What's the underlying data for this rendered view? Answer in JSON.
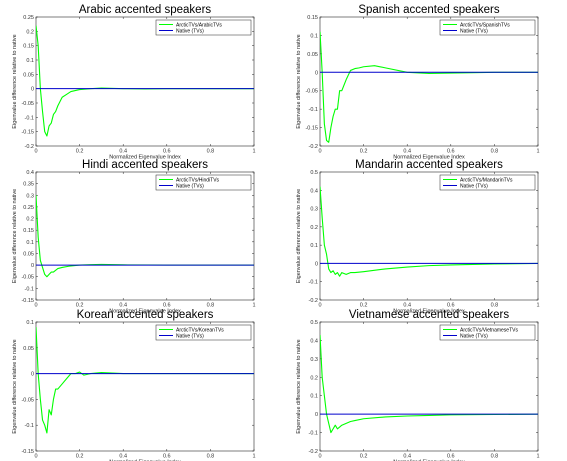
{
  "chart_data": [
    {
      "type": "line",
      "title": "Arabic accented speakers",
      "xlabel": "Normalized Eigenvalue Index",
      "ylabel": "Eigenvalue difference relative to native",
      "xlim": [
        0,
        1
      ],
      "ylim": [
        -0.2,
        0.25
      ],
      "xticks": [
        "0",
        "0.2",
        "0.4",
        "0.6",
        "0.8",
        "1"
      ],
      "yticks": [
        "-0.2",
        "-0.15",
        "-0.1",
        "-0.05",
        "0",
        "0.05",
        "0.1",
        "0.15",
        "0.2",
        "0.25"
      ],
      "legend_position": "top-right",
      "grid": false,
      "series": [
        {
          "name": "ArcticTVs/ArabicTVs",
          "color": "#00ff00",
          "x": [
            0,
            0.01,
            0.02,
            0.03,
            0.04,
            0.05,
            0.06,
            0.07,
            0.08,
            0.09,
            0.1,
            0.12,
            0.14,
            0.16,
            0.2,
            0.25,
            0.3,
            0.4,
            0.5,
            0.6,
            0.8,
            1.0
          ],
          "y": [
            0.22,
            0.15,
            0.0,
            -0.08,
            -0.15,
            -0.165,
            -0.13,
            -0.12,
            -0.09,
            -0.08,
            -0.06,
            -0.03,
            -0.02,
            -0.01,
            -0.003,
            0.0,
            0.002,
            0.0,
            -0.001,
            0.0,
            0.0,
            0.0
          ]
        },
        {
          "name": "Native (TVs)",
          "color": "#0000cc",
          "x": [
            0,
            1
          ],
          "y": [
            0,
            0
          ]
        }
      ]
    },
    {
      "type": "line",
      "title": "Spanish accented speakers",
      "xlabel": "Normalized Eigenvalue Index",
      "ylabel": "Eigenvalue difference relative to native",
      "xlim": [
        0,
        1
      ],
      "ylim": [
        -0.2,
        0.15
      ],
      "xticks": [
        "0",
        "0.2",
        "0.4",
        "0.6",
        "0.8",
        "1"
      ],
      "yticks": [
        "-0.2",
        "-0.15",
        "-0.1",
        "-0.05",
        "0",
        "0.05",
        "0.1",
        "0.15"
      ],
      "legend_position": "top-right",
      "grid": false,
      "series": [
        {
          "name": "ArcticTVs/SpanishTVs",
          "color": "#00ff00",
          "x": [
            0,
            0.01,
            0.02,
            0.03,
            0.04,
            0.05,
            0.06,
            0.07,
            0.08,
            0.09,
            0.1,
            0.12,
            0.14,
            0.16,
            0.18,
            0.2,
            0.25,
            0.3,
            0.4,
            0.5,
            0.6,
            0.8,
            1.0
          ],
          "y": [
            0.11,
            0.0,
            -0.14,
            -0.185,
            -0.19,
            -0.15,
            -0.12,
            -0.1,
            -0.1,
            -0.05,
            -0.05,
            -0.02,
            0.005,
            0.01,
            0.012,
            0.015,
            0.018,
            0.012,
            0.0,
            -0.003,
            -0.002,
            0.0,
            0.0
          ]
        },
        {
          "name": "Native (TVs)",
          "color": "#0000cc",
          "x": [
            0,
            1
          ],
          "y": [
            0,
            0
          ]
        }
      ]
    },
    {
      "type": "line",
      "title": "Hindi accented speakers",
      "xlabel": "Normalized Eigenvalue Index",
      "ylabel": "Eigenvalue difference relative to native",
      "xlim": [
        0,
        1
      ],
      "ylim": [
        -0.15,
        0.4
      ],
      "xticks": [
        "0",
        "0.2",
        "0.4",
        "0.6",
        "0.8",
        "1"
      ],
      "yticks": [
        "-0.15",
        "-0.1",
        "-0.05",
        "0",
        "0.05",
        "0.1",
        "0.15",
        "0.2",
        "0.25",
        "0.3",
        "0.35",
        "0.4"
      ],
      "legend_position": "top-right",
      "grid": false,
      "series": [
        {
          "name": "ArcticTVs/HindiTVs",
          "color": "#00ff00",
          "x": [
            0,
            0.01,
            0.02,
            0.03,
            0.04,
            0.05,
            0.06,
            0.07,
            0.08,
            0.1,
            0.12,
            0.15,
            0.2,
            0.25,
            0.3,
            0.4,
            0.6,
            0.8,
            1.0
          ],
          "y": [
            0.3,
            0.12,
            0.02,
            -0.01,
            -0.04,
            -0.05,
            -0.04,
            -0.03,
            -0.03,
            -0.015,
            -0.01,
            -0.005,
            0.0,
            0.002,
            0.003,
            0.001,
            0.0,
            0.0,
            0.0
          ]
        },
        {
          "name": "Native (TVs)",
          "color": "#0000cc",
          "x": [
            0,
            1
          ],
          "y": [
            0,
            0
          ]
        }
      ]
    },
    {
      "type": "line",
      "title": "Mandarin accented speakers",
      "xlabel": "Normalized Eigenvalue Index",
      "ylabel": "Eigenvalue difference relative to native",
      "xlim": [
        0,
        1
      ],
      "ylim": [
        -0.2,
        0.5
      ],
      "xticks": [
        "0",
        "0.2",
        "0.4",
        "0.6",
        "0.8",
        "1"
      ],
      "yticks": [
        "-0.2",
        "-0.1",
        "0",
        "0.1",
        "0.2",
        "0.3",
        "0.4",
        "0.5"
      ],
      "legend_position": "top-right",
      "grid": false,
      "series": [
        {
          "name": "ArcticTVs/MandarinTVs",
          "color": "#00ff00",
          "x": [
            0,
            0.01,
            0.02,
            0.03,
            0.04,
            0.05,
            0.06,
            0.07,
            0.08,
            0.09,
            0.1,
            0.12,
            0.14,
            0.16,
            0.2,
            0.3,
            0.4,
            0.5,
            0.6,
            0.8,
            1.0
          ],
          "y": [
            0.42,
            0.25,
            0.1,
            0.05,
            -0.03,
            -0.05,
            -0.04,
            -0.06,
            -0.05,
            -0.07,
            -0.05,
            -0.06,
            -0.05,
            -0.05,
            -0.045,
            -0.03,
            -0.02,
            -0.012,
            -0.008,
            -0.003,
            0.0
          ]
        },
        {
          "name": "Native (TVs)",
          "color": "#0000cc",
          "x": [
            0,
            1
          ],
          "y": [
            0,
            0
          ]
        }
      ]
    },
    {
      "type": "line",
      "title": "Korean accented speakers",
      "xlabel": "Normalized Eigenvalue Index",
      "ylabel": "Eigenvalue difference relative to native",
      "xlim": [
        0,
        1
      ],
      "ylim": [
        -0.15,
        0.1
      ],
      "xticks": [
        "0",
        "0.2",
        "0.4",
        "0.6",
        "0.8",
        "1"
      ],
      "yticks": [
        "-0.15",
        "-0.1",
        "-0.05",
        "0",
        "0.05",
        "0.1"
      ],
      "legend_position": "top-right",
      "grid": false,
      "series": [
        {
          "name": "ArcticTVs/KoreanTVs",
          "color": "#00ff00",
          "x": [
            0,
            0.01,
            0.02,
            0.03,
            0.04,
            0.05,
            0.06,
            0.07,
            0.08,
            0.09,
            0.1,
            0.12,
            0.14,
            0.16,
            0.18,
            0.2,
            0.22,
            0.25,
            0.3,
            0.4,
            0.6,
            0.8,
            1.0
          ],
          "y": [
            0.09,
            0.0,
            -0.05,
            -0.09,
            -0.1,
            -0.115,
            -0.07,
            -0.08,
            -0.05,
            -0.03,
            -0.03,
            -0.02,
            -0.01,
            0.0,
            0.0,
            0.003,
            -0.003,
            0.0,
            0.002,
            0.0,
            0.0,
            0.0,
            0.0
          ]
        },
        {
          "name": "Native (TVs)",
          "color": "#0000cc",
          "x": [
            0,
            1
          ],
          "y": [
            0,
            0
          ]
        }
      ]
    },
    {
      "type": "line",
      "title": "Vietnamese accented speakers",
      "xlabel": "Normalized Eigenvalue Index",
      "ylabel": "Eigenvalue difference relative to native",
      "xlim": [
        0,
        1
      ],
      "ylim": [
        -0.2,
        0.5
      ],
      "xticks": [
        "0",
        "0.2",
        "0.4",
        "0.6",
        "0.8",
        "1"
      ],
      "yticks": [
        "-0.2",
        "-0.1",
        "0",
        "0.1",
        "0.2",
        "0.3",
        "0.4",
        "0.5"
      ],
      "legend_position": "top-right",
      "grid": false,
      "series": [
        {
          "name": "ArcticTVs/VietnameseTVs",
          "color": "#00ff00",
          "x": [
            0,
            0.01,
            0.02,
            0.03,
            0.04,
            0.05,
            0.06,
            0.07,
            0.08,
            0.09,
            0.1,
            0.12,
            0.14,
            0.16,
            0.2,
            0.3,
            0.4,
            0.5,
            0.6,
            0.8,
            1.0
          ],
          "y": [
            0.43,
            0.2,
            0.1,
            0.0,
            -0.05,
            -0.1,
            -0.08,
            -0.06,
            -0.08,
            -0.07,
            -0.06,
            -0.05,
            -0.04,
            -0.035,
            -0.025,
            -0.015,
            -0.01,
            -0.007,
            -0.004,
            -0.002,
            0.0
          ]
        },
        {
          "name": "Native (TVs)",
          "color": "#0000cc",
          "x": [
            0,
            1
          ],
          "y": [
            0,
            0
          ]
        }
      ]
    }
  ]
}
